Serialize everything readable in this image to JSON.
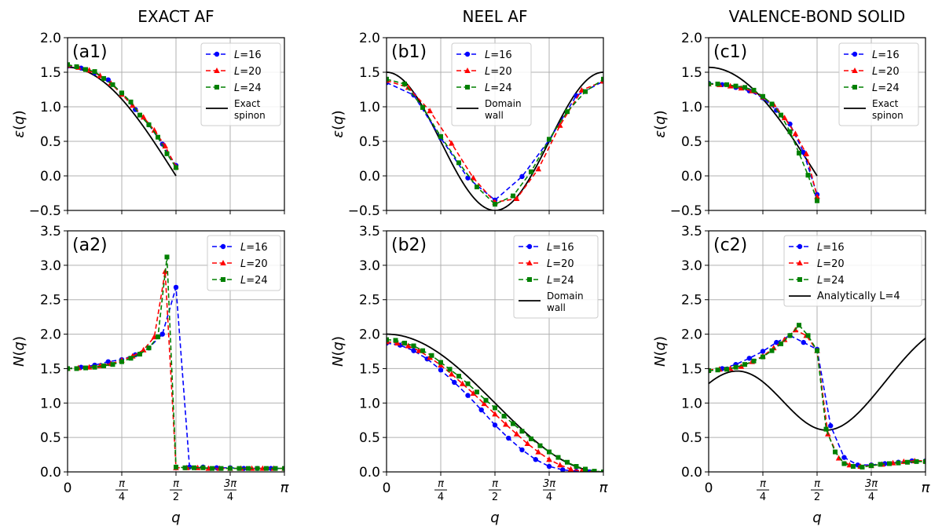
{
  "column_titles": [
    "EXACT AF",
    "NEEL AF",
    "VALENCE-BOND SOLID"
  ],
  "x_axis": {
    "label": "q",
    "ticks": [
      0,
      0.7853981634,
      1.5707963268,
      2.3561944902,
      3.1415926536
    ],
    "range": [
      0,
      3.1415926536
    ]
  },
  "series_style": [
    {
      "name": "L=16",
      "color": "#0000ff",
      "marker": "circle"
    },
    {
      "name": "L=20",
      "color": "#ff0000",
      "marker": "triangle"
    },
    {
      "name": "L=24",
      "color": "#008000",
      "marker": "square"
    }
  ],
  "reference_color": "#000000",
  "chart_data": [
    {
      "id": "a1",
      "panel_label": "(a1)",
      "type": "line",
      "ylabel": "ε(q)",
      "ylim": [
        -0.5,
        2.0
      ],
      "yticks": [
        -0.5,
        0.0,
        0.5,
        1.0,
        1.5,
        2.0
      ],
      "grid": true,
      "legend_position": "top-right",
      "series": [
        {
          "name": "L=16",
          "x": [
            0,
            0.196,
            0.393,
            0.589,
            0.785,
            0.982,
            1.178,
            1.374,
            1.571
          ],
          "y": [
            1.59,
            1.56,
            1.49,
            1.39,
            1.19,
            0.96,
            0.74,
            0.46,
            0.15
          ]
        },
        {
          "name": "L=20",
          "x": [
            0,
            0.157,
            0.314,
            0.471,
            0.628,
            0.785,
            0.942,
            1.1,
            1.257,
            1.414,
            1.571
          ],
          "y": [
            1.6,
            1.57,
            1.53,
            1.45,
            1.34,
            1.18,
            1.02,
            0.85,
            0.66,
            0.43,
            0.13
          ]
        },
        {
          "name": "L=24",
          "x": [
            0,
            0.131,
            0.262,
            0.393,
            0.524,
            0.654,
            0.785,
            0.916,
            1.047,
            1.178,
            1.309,
            1.44,
            1.571
          ],
          "y": [
            1.61,
            1.58,
            1.54,
            1.51,
            1.41,
            1.32,
            1.2,
            1.07,
            0.88,
            0.74,
            0.56,
            0.32,
            0.12
          ]
        }
      ],
      "reference": {
        "name": "Exact spinon",
        "legend_lines": [
          "Exact",
          "spinon"
        ],
        "formula": "exact_spinon"
      }
    },
    {
      "id": "b1",
      "panel_label": "(b1)",
      "type": "line",
      "ylabel": "ε(q)",
      "ylim": [
        -0.5,
        2.0
      ],
      "yticks": [
        -0.5,
        0.0,
        0.5,
        1.0,
        1.5,
        2.0
      ],
      "grid": true,
      "legend_position": "top-left",
      "series": [
        {
          "name": "L=16",
          "x": [
            0,
            0.393,
            0.785,
            1.178,
            1.571,
            1.963,
            2.356,
            2.749,
            3.142
          ],
          "y": [
            1.35,
            1.17,
            0.55,
            -0.03,
            -0.35,
            -0.01,
            0.52,
            1.16,
            1.37
          ]
        },
        {
          "name": "L=20",
          "x": [
            0,
            0.314,
            0.628,
            0.942,
            1.257,
            1.571,
            1.885,
            2.199,
            2.513,
            2.827,
            3.142
          ],
          "y": [
            1.38,
            1.28,
            0.94,
            0.47,
            -0.03,
            -0.38,
            -0.33,
            0.1,
            0.73,
            1.24,
            1.37
          ]
        },
        {
          "name": "L=24",
          "x": [
            0,
            0.262,
            0.524,
            0.785,
            1.047,
            1.309,
            1.571,
            1.833,
            2.094,
            2.356,
            2.618,
            2.88,
            3.142
          ],
          "y": [
            1.4,
            1.33,
            0.99,
            0.57,
            0.19,
            -0.16,
            -0.41,
            -0.29,
            0.06,
            0.53,
            0.93,
            1.22,
            1.4
          ]
        }
      ],
      "reference": {
        "name": "Domain wall",
        "legend_lines": [
          "Domain",
          "wall"
        ],
        "formula": "domain_wall_energy"
      }
    },
    {
      "id": "c1",
      "panel_label": "(c1)",
      "type": "line",
      "ylabel": "ε(q)",
      "ylim": [
        -0.5,
        2.0
      ],
      "yticks": [
        -0.5,
        0.0,
        0.5,
        1.0,
        1.5,
        2.0
      ],
      "grid": true,
      "legend_position": "top-right",
      "series": [
        {
          "name": "L=16",
          "x": [
            0,
            0.196,
            0.393,
            0.589,
            0.785,
            0.982,
            1.178,
            1.374,
            1.571
          ],
          "y": [
            1.34,
            1.32,
            1.28,
            1.23,
            1.13,
            0.95,
            0.75,
            0.34,
            -0.27
          ]
        },
        {
          "name": "L=20",
          "x": [
            0,
            0.157,
            0.314,
            0.471,
            0.628,
            0.785,
            0.942,
            1.1,
            1.257,
            1.414,
            1.571
          ],
          "y": [
            1.33,
            1.32,
            1.3,
            1.27,
            1.23,
            1.14,
            1.03,
            0.84,
            0.61,
            0.32,
            -0.3
          ]
        },
        {
          "name": "L=24",
          "x": [
            0,
            0.131,
            0.262,
            0.393,
            0.524,
            0.654,
            0.785,
            0.916,
            1.047,
            1.178,
            1.309,
            1.44,
            1.571
          ],
          "y": [
            1.33,
            1.33,
            1.32,
            1.3,
            1.28,
            1.24,
            1.15,
            1.04,
            0.88,
            0.64,
            0.33,
            0.01,
            -0.36
          ]
        }
      ],
      "reference": {
        "name": "Exact spinon",
        "legend_lines": [
          "Exact",
          "spinon"
        ],
        "formula": "exact_spinon"
      }
    },
    {
      "id": "a2",
      "panel_label": "(a2)",
      "type": "line",
      "xlabel": "q",
      "ylabel": "N(q)",
      "ylim": [
        0.0,
        3.5
      ],
      "yticks": [
        0.0,
        0.5,
        1.0,
        1.5,
        2.0,
        2.5,
        3.0,
        3.5
      ],
      "grid": true,
      "legend_position": "top-right",
      "series": [
        {
          "name": "L=16",
          "x": [
            0,
            0.196,
            0.393,
            0.589,
            0.785,
            0.982,
            1.178,
            1.374,
            1.571,
            1.767,
            1.963,
            2.16,
            2.356,
            2.553,
            2.749,
            2.945,
            3.142
          ],
          "y": [
            1.5,
            1.52,
            1.55,
            1.6,
            1.63,
            1.7,
            1.8,
            2.0,
            2.68,
            0.07,
            0.07,
            0.06,
            0.06,
            0.05,
            0.05,
            0.05,
            0.05
          ]
        },
        {
          "name": "L=20",
          "x": [
            0,
            0.157,
            0.314,
            0.471,
            0.628,
            0.785,
            0.942,
            1.1,
            1.257,
            1.414,
            1.571,
            1.728,
            1.885,
            2.042,
            2.199,
            2.356,
            2.513,
            2.67,
            2.827,
            2.985,
            3.142
          ],
          "y": [
            1.5,
            1.51,
            1.52,
            1.54,
            1.57,
            1.62,
            1.68,
            1.77,
            1.96,
            2.91,
            0.06,
            0.06,
            0.06,
            0.05,
            0.05,
            0.05,
            0.05,
            0.05,
            0.05,
            0.05,
            0.05
          ]
        },
        {
          "name": "L=24",
          "x": [
            0,
            0.131,
            0.262,
            0.393,
            0.524,
            0.654,
            0.785,
            0.916,
            1.047,
            1.178,
            1.309,
            1.44,
            1.571,
            1.702,
            1.833,
            1.963,
            2.094,
            2.225,
            2.356,
            2.487,
            2.618,
            2.749,
            2.88,
            3.011,
            3.142
          ],
          "y": [
            1.5,
            1.5,
            1.51,
            1.52,
            1.54,
            1.56,
            1.6,
            1.65,
            1.71,
            1.8,
            1.96,
            3.12,
            0.07,
            0.06,
            0.06,
            0.06,
            0.05,
            0.05,
            0.05,
            0.05,
            0.05,
            0.05,
            0.05,
            0.05,
            0.05
          ]
        }
      ],
      "reference": null
    },
    {
      "id": "b2",
      "panel_label": "(b2)",
      "type": "line",
      "xlabel": "q",
      "ylabel": "N(q)",
      "ylim": [
        0.0,
        3.5
      ],
      "yticks": [
        0.0,
        0.5,
        1.0,
        1.5,
        2.0,
        2.5,
        3.0,
        3.5
      ],
      "grid": true,
      "legend_position": "top-right",
      "series": [
        {
          "name": "L=16",
          "x": [
            0,
            0.196,
            0.393,
            0.589,
            0.785,
            0.982,
            1.178,
            1.374,
            1.571,
            1.767,
            1.963,
            2.16,
            2.356,
            2.553,
            2.749,
            2.945,
            3.142
          ],
          "y": [
            1.87,
            1.84,
            1.76,
            1.64,
            1.48,
            1.3,
            1.11,
            0.9,
            0.68,
            0.49,
            0.32,
            0.18,
            0.08,
            0.03,
            0.01,
            0.0,
            0.0
          ]
        },
        {
          "name": "L=20",
          "x": [
            0,
            0.157,
            0.314,
            0.471,
            0.628,
            0.785,
            0.942,
            1.1,
            1.257,
            1.414,
            1.571,
            1.728,
            1.885,
            2.042,
            2.199,
            2.356,
            2.513,
            2.67,
            2.827,
            2.985,
            3.142
          ],
          "y": [
            1.89,
            1.87,
            1.83,
            1.76,
            1.66,
            1.55,
            1.42,
            1.28,
            1.14,
            0.99,
            0.84,
            0.69,
            0.55,
            0.41,
            0.29,
            0.18,
            0.1,
            0.04,
            0.01,
            0.0,
            0.0
          ]
        },
        {
          "name": "L=24",
          "x": [
            0,
            0.131,
            0.262,
            0.393,
            0.524,
            0.654,
            0.785,
            0.916,
            1.047,
            1.178,
            1.309,
            1.44,
            1.571,
            1.702,
            1.833,
            1.963,
            2.094,
            2.225,
            2.356,
            2.487,
            2.618,
            2.749,
            2.88,
            3.011,
            3.142
          ],
          "y": [
            1.92,
            1.91,
            1.87,
            1.83,
            1.76,
            1.69,
            1.59,
            1.49,
            1.39,
            1.28,
            1.16,
            1.04,
            0.93,
            0.81,
            0.7,
            0.59,
            0.48,
            0.38,
            0.29,
            0.21,
            0.14,
            0.08,
            0.04,
            0.01,
            0.0
          ]
        }
      ],
      "reference": {
        "name": "Domain wall",
        "legend_lines": [
          "Domain",
          "wall"
        ],
        "formula": "domain_wall_weight"
      }
    },
    {
      "id": "c2",
      "panel_label": "(c2)",
      "type": "line",
      "xlabel": "q",
      "ylabel": "N(q)",
      "ylim": [
        0.0,
        3.5
      ],
      "yticks": [
        0.0,
        0.5,
        1.0,
        1.5,
        2.0,
        2.5,
        3.0,
        3.5
      ],
      "grid": true,
      "legend_position": "top-center",
      "series": [
        {
          "name": "L=16",
          "x": [
            0,
            0.196,
            0.393,
            0.589,
            0.785,
            0.982,
            1.178,
            1.374,
            1.571,
            1.767,
            1.963,
            2.16,
            2.356,
            2.553,
            2.749,
            2.945,
            3.142
          ],
          "y": [
            1.47,
            1.5,
            1.56,
            1.65,
            1.75,
            1.88,
            1.98,
            1.88,
            1.78,
            0.67,
            0.21,
            0.1,
            0.1,
            0.12,
            0.14,
            0.16,
            0.16
          ]
        },
        {
          "name": "L=20",
          "x": [
            0,
            0.157,
            0.314,
            0.471,
            0.628,
            0.785,
            0.942,
            1.1,
            1.257,
            1.414,
            1.571,
            1.728,
            1.885,
            2.042,
            2.199,
            2.356,
            2.513,
            2.67,
            2.827,
            2.985,
            3.142
          ],
          "y": [
            1.48,
            1.49,
            1.5,
            1.53,
            1.6,
            1.68,
            1.8,
            1.92,
            2.06,
            1.98,
            1.76,
            0.55,
            0.2,
            0.1,
            0.08,
            0.09,
            0.11,
            0.13,
            0.15,
            0.16,
            0.16
          ]
        },
        {
          "name": "L=24",
          "x": [
            0,
            0.131,
            0.262,
            0.393,
            0.524,
            0.654,
            0.785,
            0.916,
            1.047,
            1.178,
            1.309,
            1.44,
            1.571,
            1.702,
            1.833,
            1.963,
            2.094,
            2.225,
            2.356,
            2.487,
            2.618,
            2.749,
            2.88,
            3.011,
            3.142
          ],
          "y": [
            1.47,
            1.48,
            1.49,
            1.52,
            1.56,
            1.61,
            1.67,
            1.76,
            1.86,
            1.98,
            2.13,
            1.98,
            1.76,
            0.62,
            0.29,
            0.12,
            0.08,
            0.07,
            0.09,
            0.11,
            0.12,
            0.13,
            0.14,
            0.15,
            0.15
          ]
        }
      ],
      "reference": {
        "name": "Analytically L=4",
        "legend_lines": [
          "Analytically L=4"
        ],
        "formula": "analytic_l4"
      }
    }
  ]
}
